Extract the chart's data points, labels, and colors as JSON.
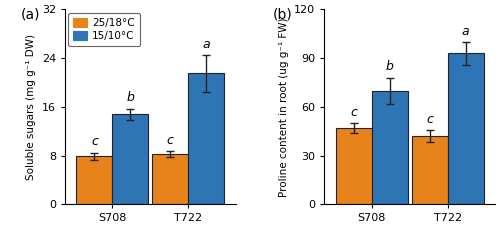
{
  "panel_a": {
    "ylabel": "Soluble sugars (mg g⁻¹ DW)",
    "ylim": [
      0,
      32
    ],
    "yticks": [
      0,
      8,
      16,
      24,
      32
    ],
    "categories": [
      "S708",
      "T722"
    ],
    "bar_values_orange": [
      7.9,
      8.3
    ],
    "bar_values_blue": [
      14.8,
      21.5
    ],
    "bar_errors_orange": [
      0.6,
      0.5
    ],
    "bar_errors_blue": [
      0.9,
      3.0
    ],
    "labels_orange": [
      "c",
      "c"
    ],
    "labels_blue": [
      "b",
      "a"
    ]
  },
  "panel_b": {
    "ylabel": "Proline content in root (ug g⁻¹ FW)",
    "ylim": [
      0,
      120
    ],
    "yticks": [
      0,
      30,
      60,
      90,
      120
    ],
    "categories": [
      "S708",
      "T722"
    ],
    "bar_values_orange": [
      47.0,
      42.0
    ],
    "bar_values_blue": [
      70.0,
      93.0
    ],
    "bar_errors_orange": [
      3.0,
      3.5
    ],
    "bar_errors_blue": [
      8.0,
      7.0
    ],
    "labels_orange": [
      "c",
      "c"
    ],
    "labels_blue": [
      "b",
      "a"
    ]
  },
  "legend_labels": [
    "25/18°C",
    "15/10°C"
  ],
  "color_orange": "#E8821A",
  "color_blue": "#2E75B6",
  "bar_width": 0.38,
  "group_positions": [
    0.42,
    1.22
  ],
  "edge_color": "#222222",
  "error_color": "#222222",
  "label_fontsize": 9,
  "tick_fontsize": 8,
  "ylabel_fontsize": 7.5,
  "legend_fontsize": 7.5,
  "panel_label_fontsize": 10,
  "figsize": [
    5.0,
    2.35
  ],
  "dpi": 100
}
